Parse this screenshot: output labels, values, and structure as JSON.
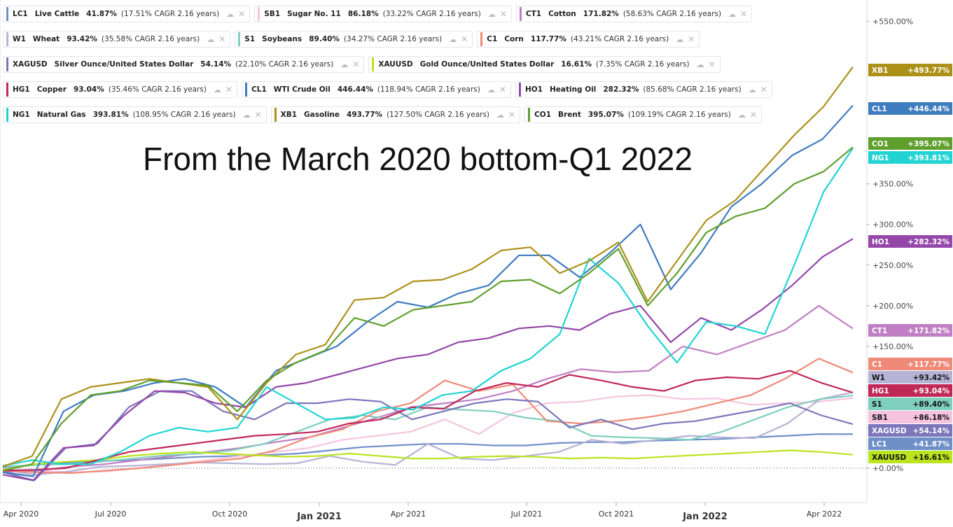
{
  "headline": "From the March 2020 bottom-Q1 2022",
  "legend_rows": [
    [
      {
        "sym": "LC1",
        "name": "Live Cattle",
        "pct": "41.87%",
        "cagr": "(17.51% CAGR 2.16 years)",
        "color": "#6f8fc9"
      },
      {
        "sym": "SB1",
        "name": "Sugar No. 11",
        "pct": "86.18%",
        "cagr": "(33.22% CAGR 2.16 years)",
        "color": "#f6c4df"
      },
      {
        "sym": "CT1",
        "name": "Cotton",
        "pct": "171.82%",
        "cagr": "(58.63% CAGR 2.16 years)",
        "color": "#c07fc4"
      }
    ],
    [
      {
        "sym": "W1",
        "name": "Wheat",
        "pct": "93.42%",
        "cagr": "(35.58% CAGR 2.16 years)",
        "color": "#b6b3d6"
      },
      {
        "sym": "S1",
        "name": "Soybeans",
        "pct": "89.40%",
        "cagr": "(34.27% CAGR 2.16 years)",
        "color": "#7fcfbf"
      },
      {
        "sym": "C1",
        "name": "Corn",
        "pct": "117.77%",
        "cagr": "(43.21% CAGR 2.16 years)",
        "color": "#f08a78"
      }
    ],
    [
      {
        "sym": "XAGUSD",
        "name": "Silver Ounce/United States Dollar",
        "pct": "54.14%",
        "cagr": "(22.10% CAGR 2.16 years)",
        "color": "#7c76bb"
      },
      {
        "sym": "XAUUSD",
        "name": "Gold Ounce/United States Dollar",
        "pct": "16.61%",
        "cagr": "(7.35% CAGR 2.16 years)",
        "color": "#b9e41e"
      }
    ],
    [
      {
        "sym": "HG1",
        "name": "Copper",
        "pct": "93.04%",
        "cagr": "(35.46% CAGR 2.16 years)",
        "color": "#c02858"
      },
      {
        "sym": "CL1",
        "name": "WTI Crude Oil",
        "pct": "446.44%",
        "cagr": "(118.94% CAGR 2.16 years)",
        "color": "#3f7bbf"
      },
      {
        "sym": "HO1",
        "name": "Heating Oil",
        "pct": "282.32%",
        "cagr": "(85.68% CAGR 2.16 years)",
        "color": "#9447a8"
      }
    ],
    [
      {
        "sym": "NG1",
        "name": "Natural Gas",
        "pct": "393.81%",
        "cagr": "(108.95% CAGR 2.16 years)",
        "color": "#22d3d3"
      },
      {
        "sym": "XB1",
        "name": "Gasoline",
        "pct": "493.77%",
        "cagr": "(127.50% CAGR 2.16 years)",
        "color": "#ac9119"
      },
      {
        "sym": "CO1",
        "name": "Brent",
        "pct": "395.07%",
        "cagr": "(109.19% CAGR 2.16 years)",
        "color": "#5f9f2e"
      }
    ]
  ],
  "chart_data": {
    "type": "line",
    "title": "From the March 2020 bottom-Q1 2022",
    "x_ticks": [
      "Apr 2020",
      "Jul 2020",
      "Oct 2020",
      "Jan 2021",
      "Apr 2021",
      "Jul 2021",
      "Oct 2021",
      "Jan 2022",
      "Apr 2022"
    ],
    "x_ticks_bold": [
      "Jan 2021",
      "Jan 2022"
    ],
    "x_index_range": [
      0,
      24
    ],
    "y_ticks": [
      "+0.00%",
      "+50.00%",
      "+100.00%",
      "+150.00%",
      "+200.00%",
      "+250.00%",
      "+300.00%",
      "+350.00%",
      "+550.00%"
    ],
    "y_tick_values": [
      0,
      50,
      100,
      150,
      200,
      250,
      300,
      350,
      550
    ],
    "ylim": [
      -40,
      575
    ],
    "grid": false,
    "series": [
      {
        "name": "LC1",
        "color": "#6f8fc9",
        "end_label": "LC1",
        "end_value_label": "+41.87%",
        "values": [
          1,
          4,
          7,
          9,
          10,
          12,
          14,
          15,
          16,
          18,
          22,
          26,
          28,
          30,
          30,
          28,
          28,
          31,
          32,
          32,
          34,
          35,
          36,
          38,
          40,
          42,
          41.87
        ]
      },
      {
        "name": "SB1",
        "color": "#f6c4df",
        "values": [
          -2,
          -3,
          -5,
          -4,
          0,
          5,
          10,
          15,
          20,
          25,
          35,
          40,
          45,
          60,
          42,
          68,
          80,
          82,
          88,
          90,
          85,
          86,
          78,
          80,
          82,
          86.18
        ]
      },
      {
        "name": "CT1",
        "color": "#c07fc4",
        "values": [
          -5,
          -3,
          2,
          5,
          10,
          15,
          20,
          25,
          32,
          38,
          50,
          62,
          75,
          80,
          85,
          95,
          110,
          122,
          118,
          120,
          150,
          140,
          155,
          170,
          200,
          171.82
        ]
      },
      {
        "name": "W1",
        "color": "#b6b3d6",
        "values": [
          -2,
          -8,
          -4,
          2,
          3,
          5,
          7,
          6,
          5,
          6,
          15,
          8,
          4,
          30,
          12,
          10,
          15,
          20,
          35,
          30,
          35,
          40,
          38,
          37,
          55,
          85,
          93.42
        ]
      },
      {
        "name": "S1",
        "color": "#7fcfbf",
        "values": [
          2,
          4,
          5,
          8,
          12,
          16,
          18,
          22,
          30,
          45,
          60,
          65,
          60,
          75,
          72,
          70,
          62,
          58,
          40,
          38,
          37,
          35,
          45,
          60,
          75,
          85,
          89.4
        ]
      },
      {
        "name": "C1",
        "color": "#f08a78",
        "values": [
          -3,
          -5,
          -6,
          -3,
          0,
          4,
          8,
          12,
          22,
          38,
          48,
          70,
          80,
          108,
          95,
          103,
          58,
          55,
          58,
          63,
          70,
          80,
          90,
          110,
          135,
          117.77
        ]
      },
      {
        "name": "XAGUSD",
        "color": "#7c76bb",
        "values": [
          -5,
          -15,
          25,
          30,
          75,
          95,
          95,
          70,
          60,
          80,
          80,
          85,
          82,
          60,
          70,
          80,
          85,
          82,
          50,
          60,
          48,
          55,
          58,
          65,
          72,
          80,
          65,
          54.14
        ]
      },
      {
        "name": "XAUUSD",
        "color": "#b9e41e",
        "values": [
          -2,
          5,
          8,
          10,
          15,
          18,
          20,
          18,
          16,
          14,
          15,
          18,
          15,
          12,
          12,
          14,
          15,
          14,
          12,
          13,
          12,
          14,
          16,
          18,
          20,
          22,
          20,
          16.61
        ]
      },
      {
        "name": "HG1",
        "color": "#c02858",
        "values": [
          -3,
          -2,
          0,
          10,
          20,
          25,
          30,
          35,
          40,
          42,
          45,
          55,
          60,
          75,
          73,
          95,
          105,
          100,
          115,
          108,
          100,
          95,
          108,
          112,
          110,
          120,
          105,
          93.04
        ]
      },
      {
        "name": "CL1",
        "color": "#3f7bbf",
        "values": [
          -5,
          -10,
          70,
          90,
          95,
          105,
          110,
          100,
          75,
          120,
          135,
          150,
          180,
          205,
          198,
          215,
          225,
          262,
          262,
          235,
          265,
          300,
          220,
          265,
          322,
          350,
          385,
          405,
          446.44
        ]
      },
      {
        "name": "HO1",
        "color": "#9447a8",
        "values": [
          -8,
          -15,
          25,
          28,
          65,
          95,
          93,
          80,
          75,
          100,
          105,
          115,
          125,
          135,
          140,
          155,
          160,
          172,
          175,
          170,
          190,
          200,
          155,
          185,
          170,
          195,
          225,
          260,
          282.32
        ]
      },
      {
        "name": "NG1",
        "color": "#22d3d3",
        "values": [
          3,
          10,
          5,
          5,
          20,
          40,
          50,
          45,
          50,
          100,
          80,
          60,
          62,
          75,
          72,
          90,
          95,
          120,
          135,
          165,
          258,
          228,
          175,
          130,
          180,
          175,
          165,
          250,
          340,
          393.81
        ]
      },
      {
        "name": "XB1",
        "color": "#ac9119",
        "values": [
          2,
          15,
          85,
          100,
          105,
          110,
          105,
          100,
          60,
          105,
          140,
          152,
          207,
          210,
          230,
          232,
          245,
          268,
          272,
          240,
          255,
          278,
          205,
          255,
          305,
          330,
          370,
          410,
          445,
          493.77
        ]
      },
      {
        "name": "CO1",
        "color": "#5f9f2e",
        "values": [
          -3,
          5,
          55,
          90,
          95,
          108,
          105,
          102,
          70,
          108,
          130,
          145,
          185,
          175,
          195,
          200,
          205,
          230,
          232,
          215,
          240,
          270,
          200,
          240,
          290,
          310,
          320,
          350,
          365,
          395.07
        ]
      }
    ],
    "end_labels": [
      {
        "sym": "XB1",
        "value": "+493.77%",
        "color": "#ac9119"
      },
      {
        "sym": "CL1",
        "value": "+446.44%",
        "color": "#3f7bbf"
      },
      {
        "sym": "CO1",
        "value": "+395.07%",
        "color": "#5f9f2e"
      },
      {
        "sym": "NG1",
        "value": "+393.81%",
        "color": "#22d3d3"
      },
      {
        "sym": "HO1",
        "value": "+282.32%",
        "color": "#9447a8"
      },
      {
        "sym": "CT1",
        "value": "+171.82%",
        "color": "#c07fc4"
      },
      {
        "sym": "C1",
        "value": "+117.77%",
        "color": "#f08a78"
      },
      {
        "sym": "W1",
        "value": "+93.42%",
        "color": "#b6b3d6"
      },
      {
        "sym": "HG1",
        "value": "+93.04%",
        "color": "#c02858"
      },
      {
        "sym": "S1",
        "value": "+89.40%",
        "color": "#7fcfbf"
      },
      {
        "sym": "SB1",
        "value": "+86.18%",
        "color": "#f6c4df"
      },
      {
        "sym": "XAGUSD",
        "value": "+54.14%",
        "color": "#7c76bb"
      },
      {
        "sym": "LC1",
        "value": "+41.87%",
        "color": "#6f8fc9"
      },
      {
        "sym": "XAUUSD",
        "value": "+16.61%",
        "color": "#b9e41e"
      }
    ]
  }
}
